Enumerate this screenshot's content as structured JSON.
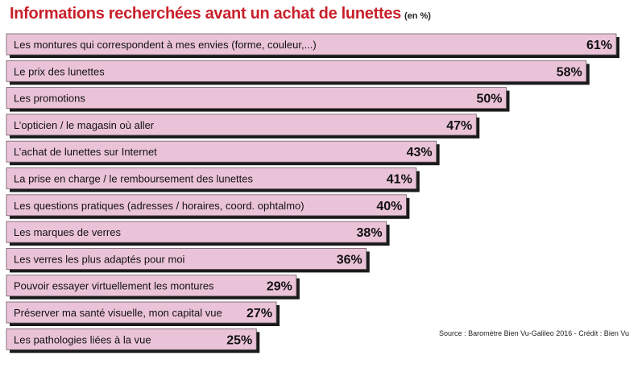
{
  "header": {
    "title": "Informations recherchées avant un achat de lunettes",
    "subtitle": "(en %)"
  },
  "source": "Source : Baromètre Bien Vu-Galileo 2016 - Crédit : Bien Vu",
  "colors": {
    "bar_fill": "#ebc3d9",
    "bar_shadow": "#1a1a1a",
    "title": "#c8202a"
  },
  "chart_data": {
    "type": "bar",
    "orientation": "horizontal",
    "title": "Informations recherchées avant un achat de lunettes",
    "subtitle": "(en %)",
    "categories": [
      "Les montures qui correspondent à mes envies (forme, couleur,...)",
      "Le prix des lunettes",
      "Les promotions",
      "L’opticien / le magasin où aller",
      "L’achat de lunettes sur Internet",
      "La prise en charge / le remboursement des lunettes",
      "Les questions pratiques (adresses / horaires, coord. ophtalmo)",
      "Les marques de verres",
      "Les verres les plus adaptés pour moi",
      "Pouvoir essayer virtuellement les montures",
      "Préserver ma santé visuelle, mon capital vue",
      "Les pathologies liées à la vue"
    ],
    "values": [
      61,
      58,
      50,
      47,
      43,
      41,
      40,
      38,
      36,
      29,
      27,
      25
    ],
    "value_labels": [
      "61%",
      "58%",
      "50%",
      "47%",
      "43%",
      "41%",
      "40%",
      "38%",
      "36%",
      "29%",
      "27%",
      "25%"
    ],
    "xlim": [
      0,
      61
    ],
    "grid": false
  }
}
